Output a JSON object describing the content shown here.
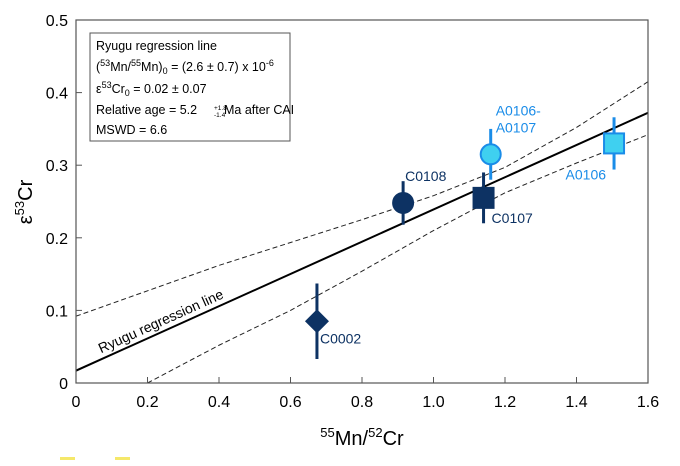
{
  "chart_data": {
    "type": "scatter",
    "title": "",
    "xlabel_sup1": "55",
    "xlabel_a": "Mn/",
    "xlabel_sup2": "52",
    "xlabel_b": "Cr",
    "ylabel_pre": "ε",
    "ylabel_sup": "53",
    "ylabel_post": "Cr",
    "xlim": [
      0,
      1.6
    ],
    "ylim": [
      0,
      0.5
    ],
    "xticks": [
      "0",
      "0.2",
      "0.4",
      "0.6",
      "0.8",
      "1.0",
      "1.2",
      "1.4",
      "1.6"
    ],
    "yticks": [
      "0",
      "0.1",
      "0.2",
      "0.3",
      "0.4",
      "0.5"
    ],
    "grid": false,
    "points": [
      {
        "label": "C0002",
        "x": 0.674,
        "y": 0.085,
        "err": 0.052,
        "marker": "diamond",
        "color": "#0d3263"
      },
      {
        "label": "C0108",
        "x": 0.915,
        "y": 0.248,
        "err": 0.03,
        "marker": "circle",
        "color": "#0d3263"
      },
      {
        "label": "C0107",
        "x": 1.14,
        "y": 0.255,
        "err": 0.035,
        "marker": "square",
        "color": "#0d3263"
      },
      {
        "label_line1": "A0106-",
        "label_line2": "A0107",
        "x": 1.16,
        "y": 0.315,
        "err": 0.035,
        "marker": "circle",
        "color": "#3fd0f0",
        "edge": "#1a8ce8"
      },
      {
        "label": "A0106",
        "x": 1.505,
        "y": 0.33,
        "err": 0.036,
        "marker": "square",
        "color": "#3fd0f0",
        "edge": "#1a8ce8"
      }
    ],
    "regression": {
      "label": "Ryugu regression line",
      "intercept": 0.017,
      "slope": 0.222
    },
    "confidence_upper": [
      [
        0,
        0.092
      ],
      [
        0.4,
        0.162
      ],
      [
        0.8,
        0.225
      ],
      [
        1.0,
        0.258
      ],
      [
        1.2,
        0.297
      ],
      [
        1.4,
        0.352
      ],
      [
        1.6,
        0.415
      ]
    ],
    "confidence_lower": [
      [
        0.2,
        0.0
      ],
      [
        0.4,
        0.052
      ],
      [
        0.6,
        0.1
      ],
      [
        0.8,
        0.154
      ],
      [
        1.0,
        0.21
      ],
      [
        1.2,
        0.262
      ],
      [
        1.4,
        0.303
      ],
      [
        1.6,
        0.342
      ]
    ],
    "legend": {
      "placement": "top-left",
      "line1": "Ryugu regression line",
      "line2_a": "(",
      "line2_sup1": "53",
      "line2_b": "Mn/",
      "line2_sup2": "55",
      "line2_c": "Mn)",
      "line2_sub": "0",
      "line2_d": " = (2.6 ± 0.7) x 10",
      "line2_sup3": "-6",
      "line3_a": "ε",
      "line3_sup": "53",
      "line3_b": "Cr",
      "line3_sub": "0",
      "line3_c": " = 0.02 ± 0.07",
      "line4_a": "Relative age = 5.2",
      "line4_sup": "+1.8",
      "line4_sub": "-1.4",
      "line4_b": " Ma after CAI",
      "line5": "MSWD = 6.6"
    }
  }
}
